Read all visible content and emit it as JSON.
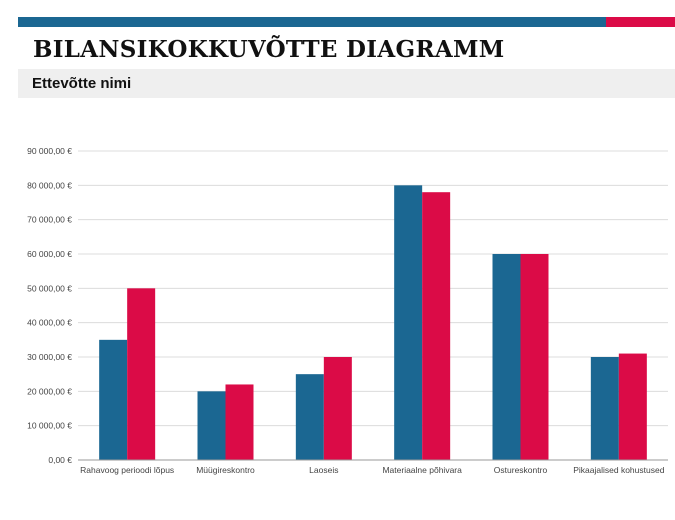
{
  "header": {
    "title": "BILANSIKOKKUVÕTTE DIAGRAMM",
    "subtitle": "Ettevõtte nimi"
  },
  "colors": {
    "accent_blue": "#1b6792",
    "accent_red": "#db0b47",
    "series_1": "#1b6792",
    "series_2": "#db0b47",
    "gridline": "#dcdcdc",
    "axis": "#9a9a9a"
  },
  "chart_data": {
    "type": "bar",
    "title": "",
    "xlabel": "",
    "ylabel": "",
    "categories": [
      "Rahavoog perioodi lõpus",
      "Müügireskontro",
      "Laoseis",
      "Materiaalne põhivara",
      "Ostureskontro",
      "Pikaajalised kohustused"
    ],
    "series": [
      {
        "values": [
          35000,
          20000,
          25000,
          80000,
          60000,
          30000
        ]
      },
      {
        "values": [
          50000,
          22000,
          30000,
          78000,
          60000,
          31000
        ]
      }
    ],
    "ylim": [
      0,
      90000
    ],
    "yticks": [
      0,
      10000,
      20000,
      30000,
      40000,
      50000,
      60000,
      70000,
      80000,
      90000
    ],
    "ytick_labels": [
      "0,00 €",
      "10 000,00 €",
      "20 000,00 €",
      "30 000,00 €",
      "40 000,00 €",
      "50 000,00 €",
      "60 000,00 €",
      "70 000,00 €",
      "80 000,00 €",
      "90 000,00 €"
    ],
    "grid": true,
    "legend": "none"
  }
}
